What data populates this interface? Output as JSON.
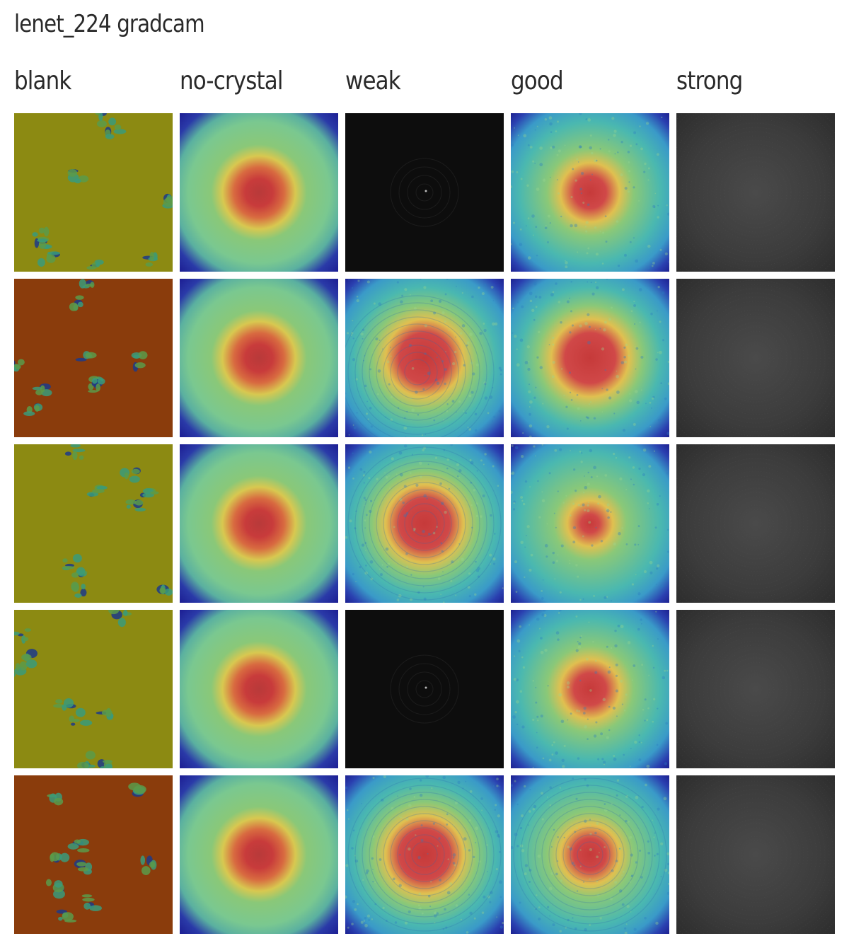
{
  "title": "lenet_224 gradcam",
  "columns": [
    {
      "key": "blank",
      "label": "blank"
    },
    {
      "key": "no-crystal",
      "label": "no-crystal"
    },
    {
      "key": "weak",
      "label": "weak"
    },
    {
      "key": "good",
      "label": "good"
    },
    {
      "key": "strong",
      "label": "strong"
    }
  ],
  "rows": 5,
  "colors": {
    "blank_olive": "#8a8a10",
    "blank_rust": "#8a3a0a",
    "heat_red": "#cc3333",
    "heat_yellow": "#e0d040",
    "heat_teal": "#5cc0a0",
    "heat_blue": "#2020a0",
    "strong_gray": "#3a3a3a",
    "weak_black": "#0b0b0b"
  },
  "tiles": [
    [
      "blank-olive",
      "nocrystal",
      "weak-dark",
      "good-center",
      "strong-gray"
    ],
    [
      "blank-rust",
      "nocrystal",
      "weak-rings",
      "good-hot",
      "strong-gray"
    ],
    [
      "blank-olive",
      "nocrystal",
      "weak-hot",
      "good-small",
      "strong-gray"
    ],
    [
      "blank-olive",
      "nocrystal",
      "weak-dark",
      "good-center",
      "strong-gray"
    ],
    [
      "blank-rust",
      "nocrystal",
      "weak-hot",
      "good-rings",
      "strong-gray"
    ]
  ]
}
